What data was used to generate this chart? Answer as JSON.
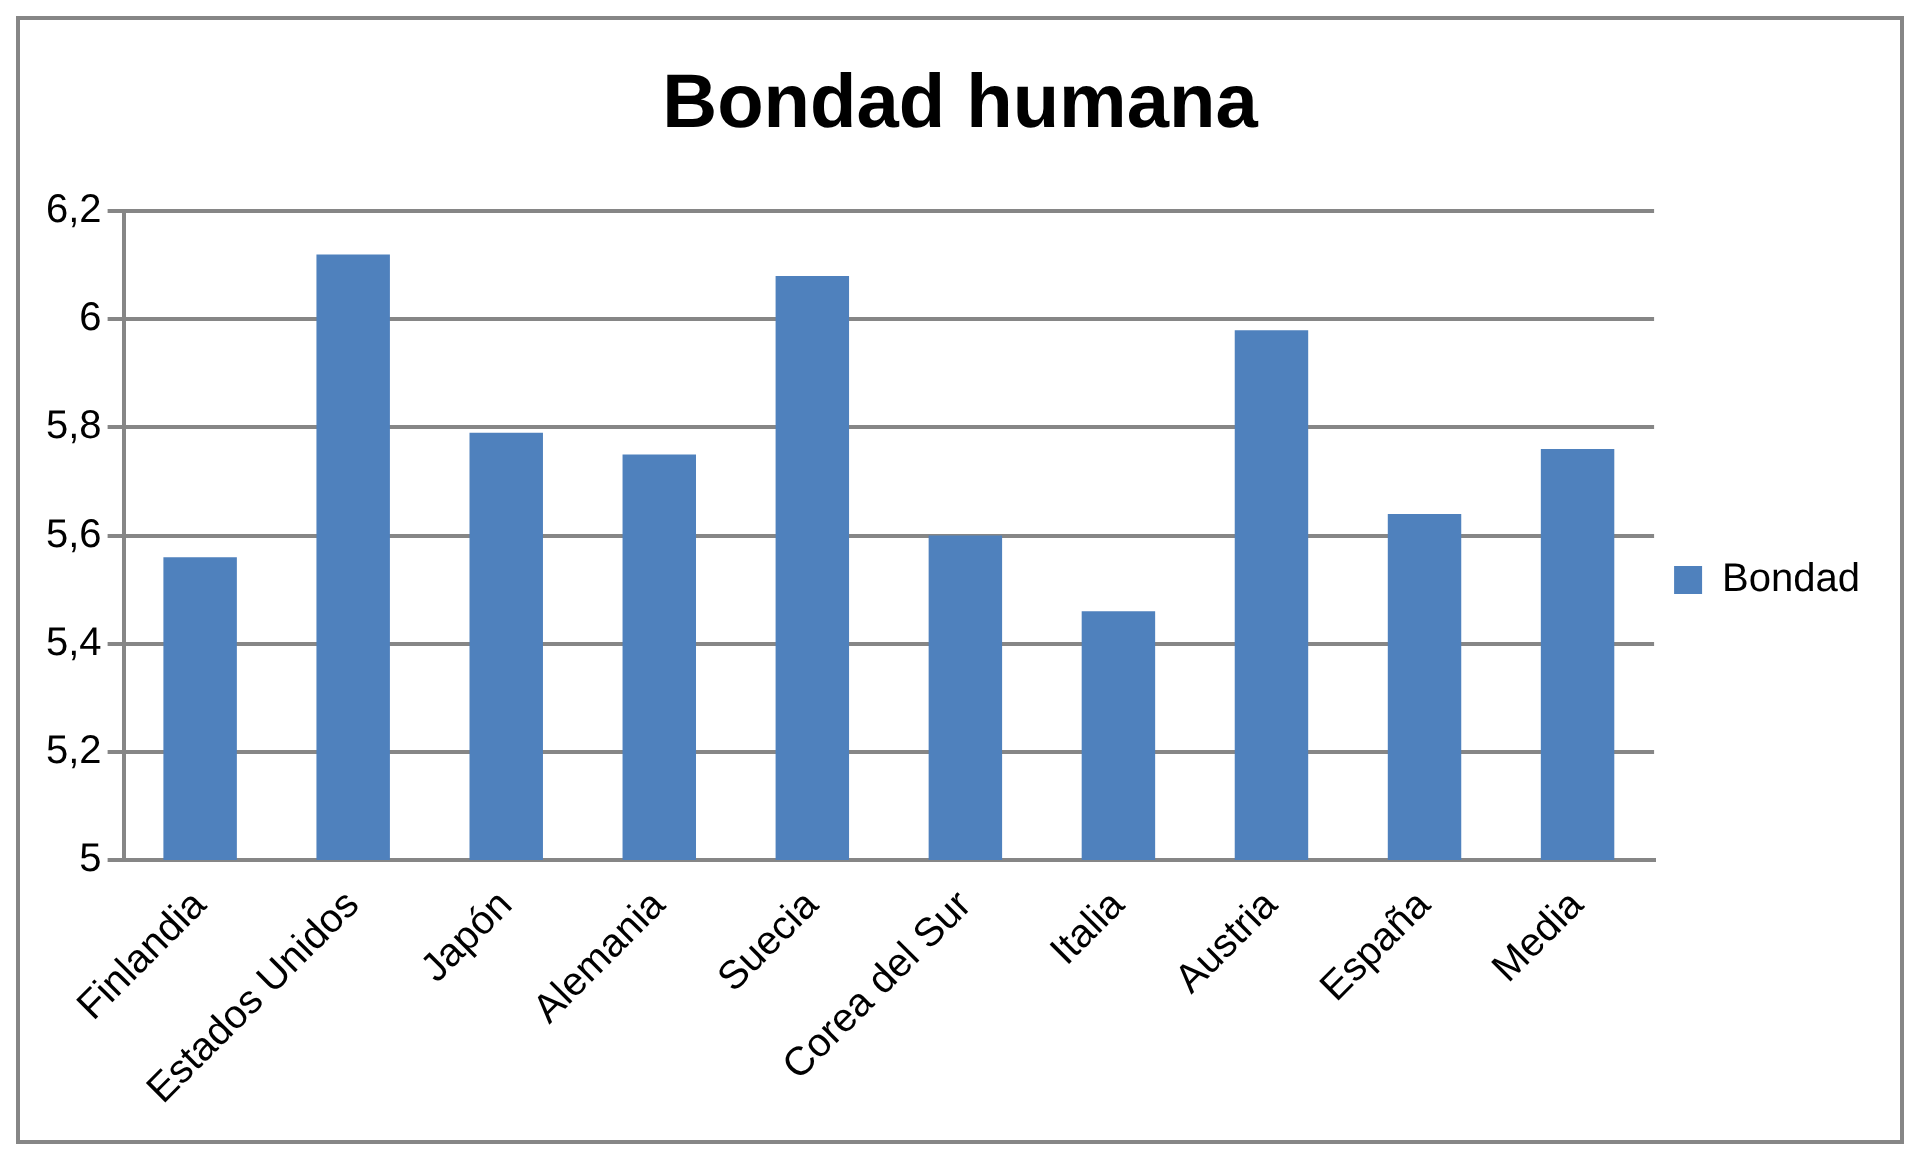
{
  "chart_data": {
    "type": "bar",
    "title": "Bondad humana",
    "categories": [
      "Finlandia",
      "Estados Unidos",
      "Japón",
      "Alemania",
      "Suecia",
      "Corea del Sur",
      "Italia",
      "Austria",
      "España",
      "Media"
    ],
    "series": [
      {
        "name": "Bondad",
        "color": "#4f81bd",
        "values": [
          5.56,
          6.12,
          5.79,
          5.75,
          6.08,
          5.6,
          5.46,
          5.98,
          5.64,
          5.76
        ]
      }
    ],
    "ylim": [
      5,
      6.2
    ],
    "yticks": [
      {
        "value": 5,
        "label": "5"
      },
      {
        "value": 5.2,
        "label": "5,2"
      },
      {
        "value": 5.4,
        "label": "5,4"
      },
      {
        "value": 5.6,
        "label": "5,6"
      },
      {
        "value": 5.8,
        "label": "5,8"
      },
      {
        "value": 6,
        "label": "6"
      },
      {
        "value": 6.2,
        "label": "6,2"
      }
    ],
    "grid": "y",
    "legend": "right"
  }
}
